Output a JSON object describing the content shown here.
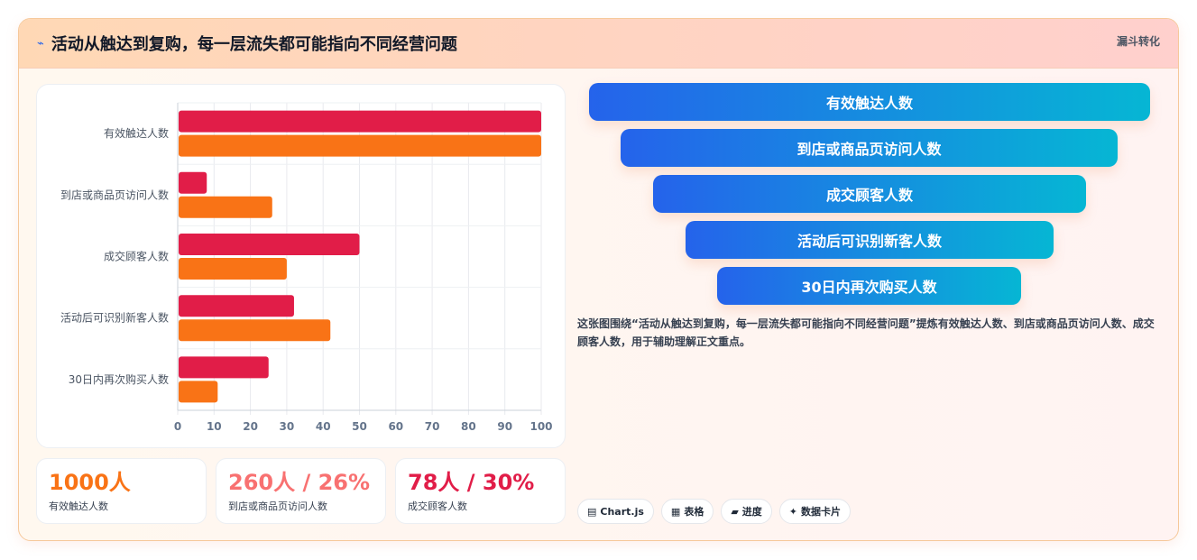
{
  "header": {
    "pin_icon": "pin-icon",
    "title": "活动从触达到复购，每一层流失都可能指向不同经营问题",
    "tag": "漏斗转化"
  },
  "chart_data": {
    "type": "bar",
    "orientation": "horizontal",
    "categories": [
      "有效触达人数",
      "到店或商品页访问人数",
      "成交顾客人数",
      "活动后可识别新客人数",
      "30日内再次购买人数"
    ],
    "series": [
      {
        "values": [
          100,
          8,
          50,
          32,
          25
        ],
        "color": "#e11d48"
      },
      {
        "values": [
          100,
          26,
          30,
          42,
          11
        ],
        "color": "#f97316"
      }
    ],
    "xlim": [
      0,
      100
    ],
    "xticks": [
      0,
      10,
      20,
      30,
      40,
      50,
      60,
      70,
      80,
      90,
      100
    ],
    "grid": true
  },
  "kpis": [
    {
      "value": "1000人",
      "label": "有效触达人数",
      "color": "#f97316"
    },
    {
      "value": "260人 / 26%",
      "label": "到店或商品页访问人数",
      "color": "#f87171"
    },
    {
      "value": "78人 / 30%",
      "label": "成交顾客人数",
      "color": "#e11d48"
    }
  ],
  "funnel": [
    "有效触达人数",
    "到店或商品页访问人数",
    "成交顾客人数",
    "活动后可识别新客人数",
    "30日内再次购买人数"
  ],
  "description": "这张图围绕“活动从触达到复购，每一层流失都可能指向不同经营问题”提炼有效触达人数、到店或商品页访问人数、成交顾客人数，用于辅助理解正文重点。",
  "chips": [
    {
      "icon": "chart-icon",
      "glyph": "▤",
      "label": "Chart.js"
    },
    {
      "icon": "table-icon",
      "glyph": "▦",
      "label": "表格"
    },
    {
      "icon": "progress-icon",
      "glyph": "▰",
      "label": "进度"
    },
    {
      "icon": "sparkle-icon",
      "glyph": "✦",
      "label": "数据卡片"
    }
  ]
}
